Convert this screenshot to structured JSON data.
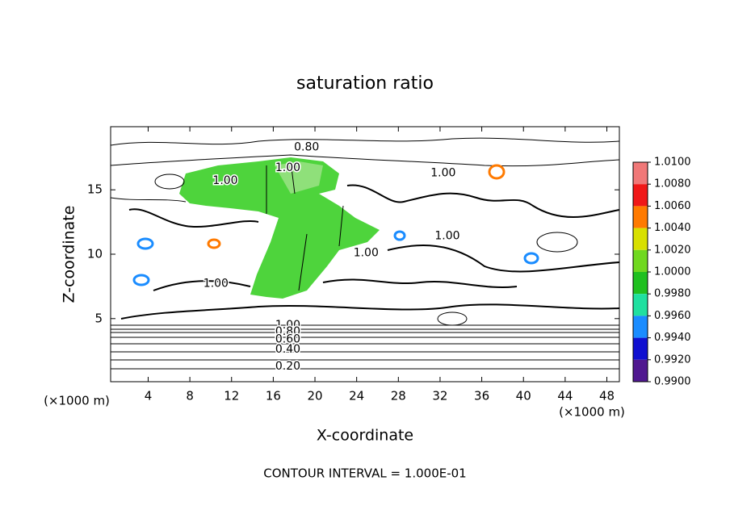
{
  "chart_data": {
    "type": "contour",
    "title": "saturation ratio",
    "x_label": "X-coordinate",
    "y_label": "Z-coordinate",
    "x_unit": "(×1000 m)",
    "y_unit": "(×1000 m)",
    "footnote": "CONTOUR INTERVAL = 1.000E-01",
    "xlim": [
      0.4,
      49.2
    ],
    "ylim": [
      0.1,
      19.9
    ],
    "xticks": [
      4,
      8,
      12,
      16,
      20,
      24,
      28,
      32,
      36,
      40,
      44,
      48
    ],
    "yticks": [
      5,
      10,
      15
    ],
    "contour_labels": [
      {
        "value": 0.8,
        "label": "0.80"
      },
      {
        "value": 1,
        "label": "1.00"
      },
      {
        "value": 1,
        "label": "1.00"
      },
      {
        "value": 1,
        "label": "1.00"
      },
      {
        "value": 1,
        "label": "1.00"
      },
      {
        "value": 1,
        "label": "1.00"
      },
      {
        "value": 1,
        "label": "1.00"
      },
      {
        "value": 1,
        "label": "1.00"
      },
      {
        "value": 0.8,
        "label": "0.80"
      },
      {
        "value": 0.6,
        "label": "0.60"
      },
      {
        "value": 0.4,
        "label": "0.40"
      },
      {
        "value": 0.2,
        "label": "0.20"
      }
    ],
    "colorbar": {
      "ticks": [
        {
          "value": 1.01,
          "label": "1.0100"
        },
        {
          "value": 1.008,
          "label": "1.0080"
        },
        {
          "value": 1.006,
          "label": "1.0060"
        },
        {
          "value": 1.004,
          "label": "1.0040"
        },
        {
          "value": 1.002,
          "label": "1.0020"
        },
        {
          "value": 1,
          "label": "1.0000"
        },
        {
          "value": 0.998,
          "label": "0.9980"
        },
        {
          "value": 0.996,
          "label": "0.9960"
        },
        {
          "value": 0.994,
          "label": "0.9940"
        },
        {
          "value": 0.992,
          "label": "0.9920"
        },
        {
          "value": 0.99,
          "label": "0.9900"
        }
      ],
      "colors": [
        "#f07878",
        "#f01818",
        "#ff7a00",
        "#d8e000",
        "#70d820",
        "#20c020",
        "#20e0a0",
        "#1a8cff",
        "#1010d0",
        "#501890"
      ]
    }
  }
}
